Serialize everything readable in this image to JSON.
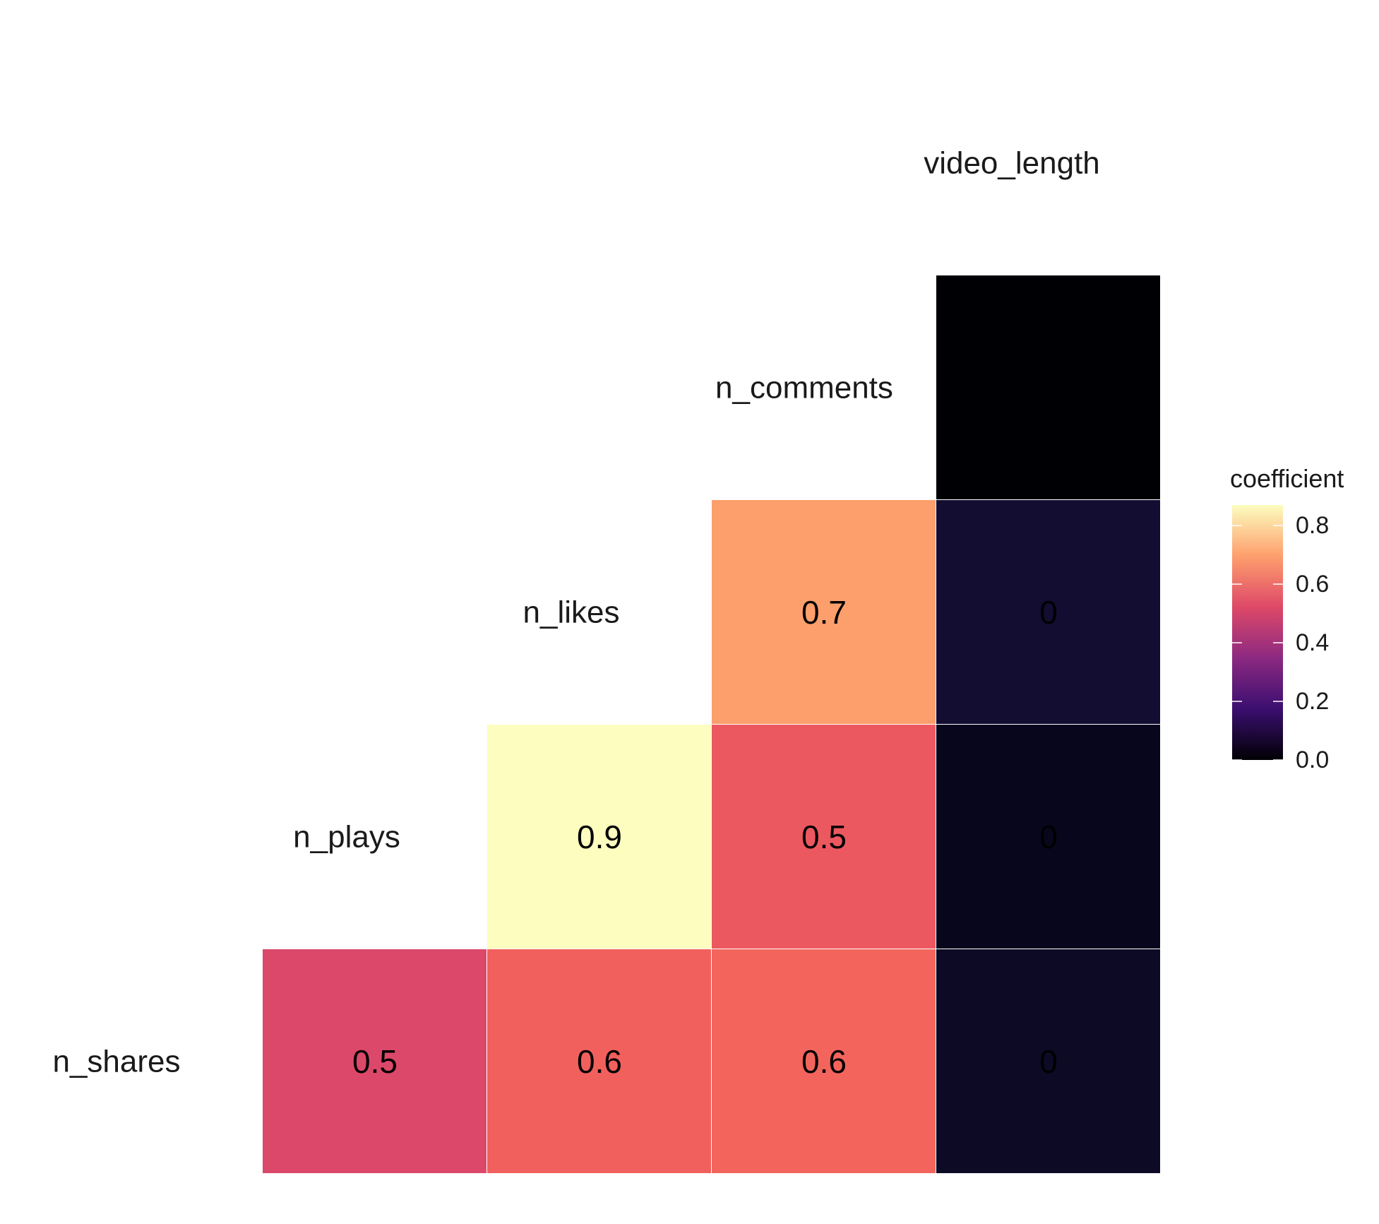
{
  "chart_data": {
    "type": "heatmap",
    "variables": [
      "n_shares",
      "n_plays",
      "n_likes",
      "n_comments",
      "video_length"
    ],
    "cells": [
      {
        "row": "n_shares",
        "col": "n_plays",
        "value": 0.5,
        "label": "0.5",
        "color": "#dc4869"
      },
      {
        "row": "n_shares",
        "col": "n_likes",
        "value": 0.6,
        "label": "0.6",
        "color": "#f1605d"
      },
      {
        "row": "n_shares",
        "col": "n_comments",
        "value": 0.6,
        "label": "0.6",
        "color": "#f3655c"
      },
      {
        "row": "n_shares",
        "col": "video_length",
        "value": 0.02,
        "label": "0",
        "color": "#0d0a26"
      },
      {
        "row": "n_plays",
        "col": "n_likes",
        "value": 0.87,
        "label": "0.9",
        "color": "#fcfdbf"
      },
      {
        "row": "n_plays",
        "col": "n_comments",
        "value": 0.55,
        "label": "0.5",
        "color": "#ec5860"
      },
      {
        "row": "n_plays",
        "col": "video_length",
        "value": 0.01,
        "label": "0",
        "color": "#08061c"
      },
      {
        "row": "n_likes",
        "col": "n_comments",
        "value": 0.7,
        "label": "0.7",
        "color": "#fd9f6c"
      },
      {
        "row": "n_likes",
        "col": "video_length",
        "value": 0.03,
        "label": "0",
        "color": "#130d32"
      },
      {
        "row": "n_comments",
        "col": "video_length",
        "value": 0.0,
        "label": "",
        "color": "#000004"
      }
    ],
    "legend": {
      "title": "coefficient",
      "ticks": [
        "0.0",
        "0.2",
        "0.4",
        "0.6",
        "0.8"
      ],
      "tick_values": [
        0.0,
        0.2,
        0.4,
        0.6,
        0.8
      ],
      "range": [
        0.0,
        0.87
      ],
      "colors": [
        "#000004",
        "#3b0f70",
        "#8c2981",
        "#de4968",
        "#fe9f6d",
        "#fcfdbf"
      ],
      "placement": "right"
    },
    "grid": false,
    "title": "",
    "xlabel": "",
    "ylabel": ""
  }
}
